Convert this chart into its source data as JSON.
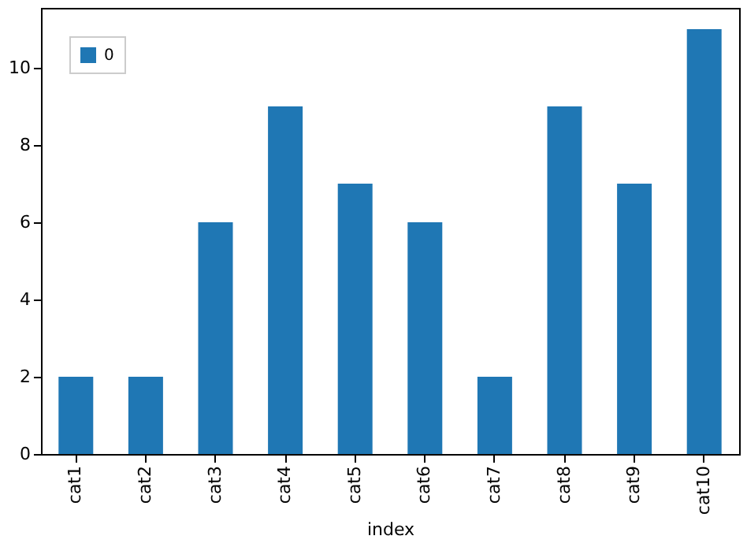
{
  "chart_data": {
    "type": "bar",
    "xlabel": "index",
    "categories": [
      "cat1",
      "cat2",
      "cat3",
      "cat4",
      "cat5",
      "cat6",
      "cat7",
      "cat8",
      "cat9",
      "cat10"
    ],
    "series": [
      {
        "name": "0",
        "color": "#1f77b4",
        "values": [
          2,
          2,
          6,
          9,
          7,
          6,
          2,
          9,
          7,
          11
        ]
      }
    ],
    "ylim": [
      0,
      11.55
    ],
    "yticks": [
      0,
      2,
      4,
      6,
      8,
      10
    ],
    "grid": false,
    "legend": "top left"
  }
}
